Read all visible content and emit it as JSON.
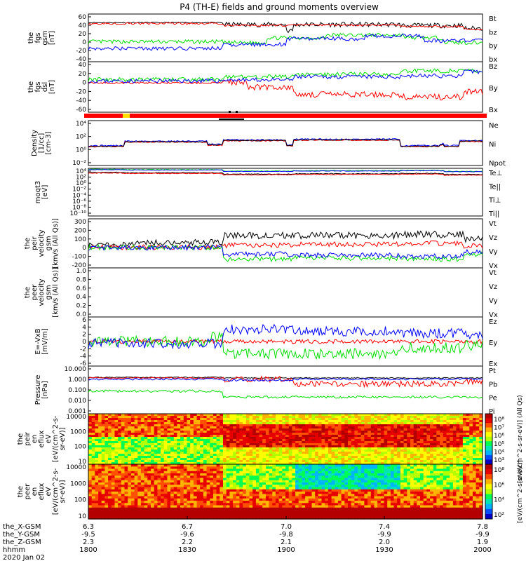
{
  "title": "P4 (TH-E) fields and ground moments overview",
  "colors": {
    "black": "#000000",
    "red": "#ff0000",
    "green": "#00dd00",
    "blue": "#0000ff"
  },
  "chart_data": [
    {
      "id": "fgs_gsm",
      "type": "line",
      "ylabel": [
        "the",
        "fgs",
        "gsm",
        "[nT]"
      ],
      "yticks": [
        "60",
        "40",
        "20",
        "0",
        "-20",
        "-40"
      ],
      "ylim": [
        -40,
        60
      ],
      "series": [
        {
          "name": "Bt",
          "color": "black"
        },
        {
          "name": "bz",
          "color": "red"
        },
        {
          "name": "by",
          "color": "green"
        },
        {
          "name": "bx",
          "color": "blue"
        }
      ]
    },
    {
      "id": "fgs_dsl",
      "type": "line",
      "ylabel": [
        "the",
        "fgs",
        "dsl",
        "[nT]"
      ],
      "yticks": [
        "40",
        "20",
        "0",
        "-20",
        "-40",
        "-60"
      ],
      "ylim": [
        -60,
        40
      ],
      "series": [
        {
          "name": "Bz",
          "color": "red"
        },
        {
          "name": "By",
          "color": "green"
        },
        {
          "name": "Bx",
          "color": "blue"
        }
      ]
    },
    {
      "id": "density",
      "type": "line",
      "ylabel": [
        "Density",
        "[1/cc]",
        "[cm-3]"
      ],
      "yticks": [
        "10⁴",
        "10²",
        "10⁰",
        "10⁻²"
      ],
      "scale": "log",
      "series": [
        {
          "name": "Ne",
          "color": "red"
        },
        {
          "name": "Ni",
          "color": "black"
        },
        {
          "name": "Npot",
          "color": "blue"
        }
      ]
    },
    {
      "id": "temp",
      "type": "line",
      "ylabel": [
        "moqt3",
        "[eV]"
      ],
      "yticks": [
        "10⁴",
        "10²",
        "10⁰",
        "10⁻²",
        "10⁻⁴",
        "10⁻⁶",
        "10⁻⁸",
        "10⁻¹⁰"
      ],
      "scale": "log",
      "series": [
        {
          "name": "Te⊥",
          "color": "red"
        },
        {
          "name": "Te||",
          "color": "black"
        },
        {
          "name": "Ti⊥",
          "color": "blue"
        },
        {
          "name": "Ti||",
          "color": "green"
        }
      ]
    },
    {
      "id": "vi",
      "type": "line",
      "ylabel": [
        "the",
        "peir",
        "velocity",
        "gsm",
        "[km/s (All Qs)]"
      ],
      "yticks": [
        "300",
        "200",
        "100",
        "0",
        "-100",
        "-200"
      ],
      "ylim": [
        -200,
        300
      ],
      "series": [
        {
          "name": "Vt",
          "color": "black"
        },
        {
          "name": "Vz",
          "color": "red"
        },
        {
          "name": "Vy",
          "color": "green"
        },
        {
          "name": "Vx",
          "color": "blue"
        }
      ]
    },
    {
      "id": "ve",
      "type": "line",
      "ylabel": [
        "the",
        "peer",
        "velocity",
        "gsm",
        "[km/s (All Qs)]"
      ],
      "yticks": [
        "1.0",
        "0.8",
        "0.6",
        "0.4",
        "0.2",
        "0.0"
      ],
      "ylim": [
        0,
        1
      ],
      "series": [
        {
          "name": "Vt",
          "color": "black"
        },
        {
          "name": "Vz",
          "color": "red"
        },
        {
          "name": "Vy",
          "color": "green"
        },
        {
          "name": "Vx",
          "color": "blue"
        }
      ]
    },
    {
      "id": "efield",
      "type": "line",
      "ylabel": [
        "E=-VxB",
        "[mV/m]"
      ],
      "yticks": [
        "6",
        "4",
        "2",
        "0",
        "-2",
        "-4",
        "-6"
      ],
      "ylim": [
        -6,
        6
      ],
      "series": [
        {
          "name": "Ez",
          "color": "red"
        },
        {
          "name": "Ey",
          "color": "green"
        },
        {
          "name": "Ex",
          "color": "blue"
        }
      ]
    },
    {
      "id": "pressure",
      "type": "line",
      "ylabel": [
        "Pressure",
        "[nPa]"
      ],
      "yticks": [
        "10.000",
        "1.000",
        "0.100",
        "0.010",
        "0.001"
      ],
      "scale": "log",
      "series": [
        {
          "name": "Pt",
          "color": "black"
        },
        {
          "name": "Pb",
          "color": "red"
        },
        {
          "name": "Pe",
          "color": "green"
        },
        {
          "name": "Pi",
          "color": "blue"
        }
      ]
    },
    {
      "id": "ion_spec",
      "type": "heatmap",
      "ylabel": [
        "the",
        "peir",
        "en",
        "eflux",
        "eV",
        "[eV/(cm^2-s-",
        "sr-eV)]"
      ],
      "yticks": [
        "10000",
        "1000",
        "100",
        "10"
      ],
      "colorbar_ticks": [
        "10⁸",
        "10⁷",
        "10⁶",
        "10⁵",
        "10⁴",
        "10³"
      ],
      "colorbar_label": "[eV/(cm^2-s-sr-eV)] (All Qs)"
    },
    {
      "id": "ele_spec",
      "type": "heatmap",
      "ylabel": [
        "the",
        "peer",
        "en",
        "eflux",
        "eV",
        "[eV/(cm^2-s-",
        "sr-eV)]"
      ],
      "yticks": [
        "10000",
        "1000",
        "100",
        "10"
      ],
      "colorbar_ticks": [
        "10⁸",
        "10⁶",
        "10⁴",
        "10²"
      ],
      "colorbar_label": "[eV/(cm^2-s-sr-eV)]"
    }
  ],
  "x_axis": {
    "row_labels": [
      "the_X-GSM",
      "the_Y-GSM",
      "the_Z-GSM",
      "hhmm",
      "2020 Jan 02"
    ],
    "ticks": [
      {
        "x": "6.3",
        "y": "-9.5",
        "z": "2.3",
        "t": "1800"
      },
      {
        "x": "6.7",
        "y": "-9.6",
        "z": "2.2",
        "t": "1830"
      },
      {
        "x": "7.0",
        "y": "-9.8",
        "z": "2.1",
        "t": "1900"
      },
      {
        "x": "7.4",
        "y": "-9.9",
        "z": "2.0",
        "t": "1930"
      },
      {
        "x": "7.8",
        "y": "-9.9",
        "z": "1.9",
        "t": "2000"
      }
    ]
  }
}
